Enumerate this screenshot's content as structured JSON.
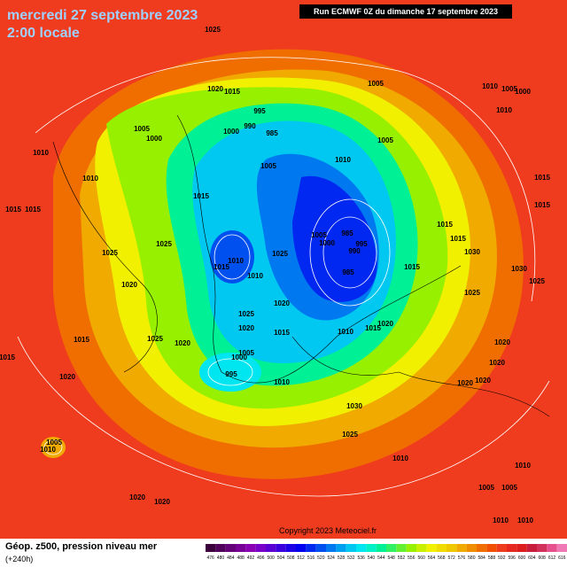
{
  "header": {
    "date": "mercredi 27 septembre 2023",
    "time": "2:00 locale",
    "run": "Run ECMWF 0Z du dimanche 17 septembre 2023"
  },
  "footer": {
    "product": "Géop. z500, pression niveau mer",
    "lead": "(+240h)",
    "copyright": "Copyright 2023 Meteociel.fr"
  },
  "legend": {
    "values": [
      476,
      480,
      484,
      488,
      492,
      496,
      500,
      504,
      508,
      512,
      516,
      520,
      524,
      528,
      532,
      536,
      540,
      544,
      548,
      552,
      556,
      560,
      564,
      568,
      572,
      576,
      580,
      584,
      588,
      592,
      596,
      600,
      604,
      608,
      612,
      616
    ],
    "colors": [
      "#3c003c",
      "#50005a",
      "#640078",
      "#780096",
      "#8c00b4",
      "#7800c8",
      "#5a00d2",
      "#3c00dc",
      "#1e00e6",
      "#0000f0",
      "#0028f0",
      "#0050f0",
      "#0078f0",
      "#00a0f0",
      "#00c8f0",
      "#00e6f0",
      "#00f0c8",
      "#00f096",
      "#32f064",
      "#64f032",
      "#96f000",
      "#c8f000",
      "#f0f000",
      "#f0dc00",
      "#f0c800",
      "#f0aa00",
      "#f08c00",
      "#f06e00",
      "#f05000",
      "#f03c1e",
      "#e6281e",
      "#dc1e1e",
      "#c81e3c",
      "#d2325a",
      "#e6508c",
      "#f078b4"
    ]
  },
  "isobar_labels": [
    "1025",
    "1020",
    "1015",
    "1005",
    "1010",
    "1005",
    "1000",
    "1010",
    "995",
    "990",
    "985",
    "1000",
    "1005",
    "1000",
    "1005",
    "1010",
    "1005",
    "1010",
    "1010",
    "1015",
    "1015",
    "1015",
    "1015",
    "1015",
    "1025",
    "1025",
    "1015",
    "1015",
    "1030",
    "1005",
    "1000",
    "985",
    "995",
    "990",
    "985",
    "1015",
    "1010",
    "1015",
    "1025",
    "1010",
    "1020",
    "1030",
    "1025",
    "1025",
    "1020",
    "1025",
    "1020",
    "1015",
    "1010",
    "1015",
    "1020",
    "1025",
    "1020",
    "1015",
    "1015",
    "1020",
    "1005",
    "1000",
    "995",
    "1020",
    "1010",
    "1020",
    "1020",
    "1020",
    "1030",
    "1025",
    "1005",
    "1010",
    "1010",
    "1010",
    "1005",
    "1005",
    "1020",
    "1020",
    "1010",
    "1010"
  ]
}
